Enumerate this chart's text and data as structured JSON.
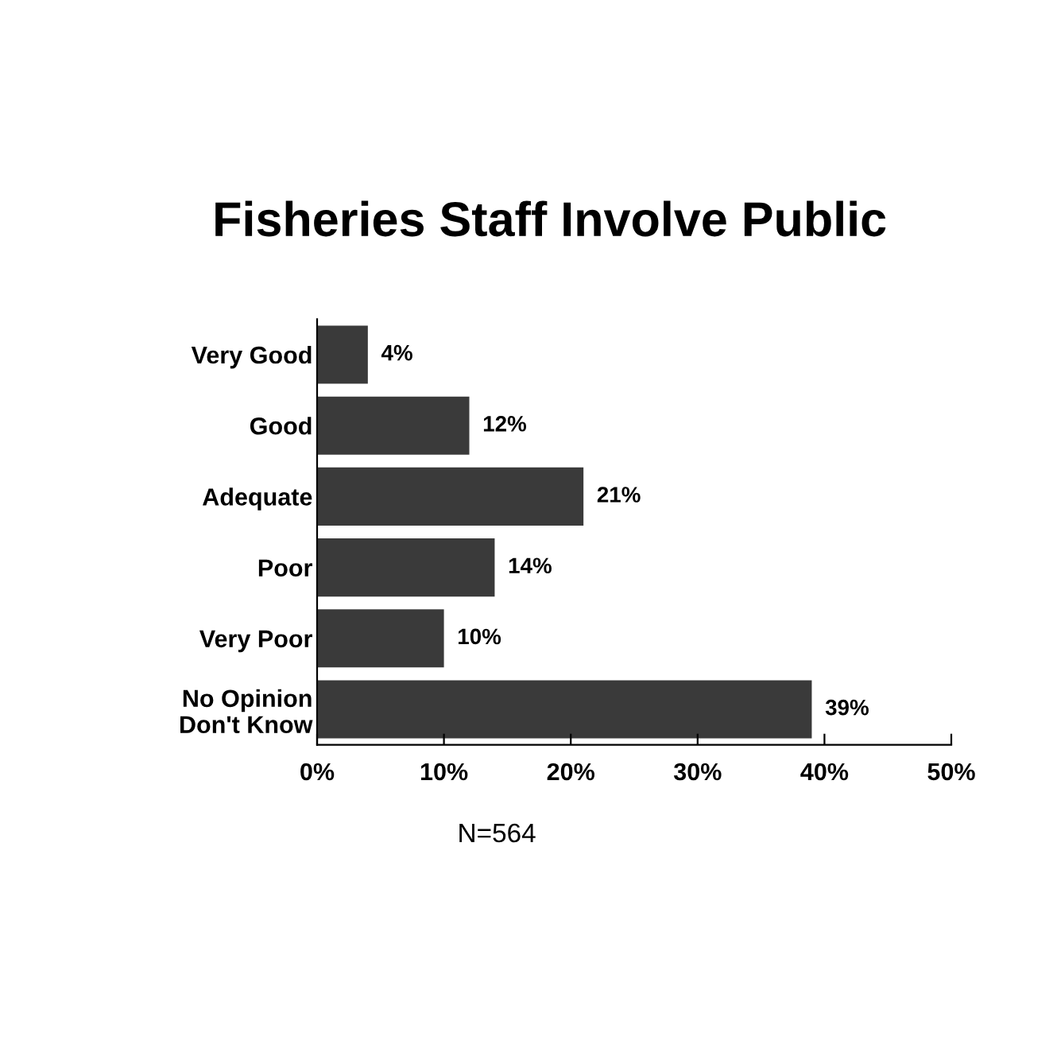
{
  "chart_data": {
    "type": "bar",
    "orientation": "horizontal",
    "title": "Fisheries Staff Involve Public",
    "categories": [
      "Very Good",
      "Good",
      "Adequate",
      "Poor",
      "Very Poor",
      "No Opinion\nDon't Know"
    ],
    "values": [
      4,
      12,
      21,
      14,
      10,
      39
    ],
    "value_labels": [
      "4%",
      "12%",
      "21%",
      "14%",
      "10%",
      "39%"
    ],
    "color": "#3a3a3a",
    "xlim": [
      0,
      50
    ],
    "xticks": [
      {
        "value": 0,
        "label": "0%"
      },
      {
        "value": 10,
        "label": "10%"
      },
      {
        "value": 20,
        "label": "20%"
      },
      {
        "value": 30,
        "label": "30%"
      },
      {
        "value": 40,
        "label": "40%"
      },
      {
        "value": 50,
        "label": "50%"
      }
    ],
    "annotations": [
      "N=564"
    ],
    "grid": false,
    "legend": false
  }
}
